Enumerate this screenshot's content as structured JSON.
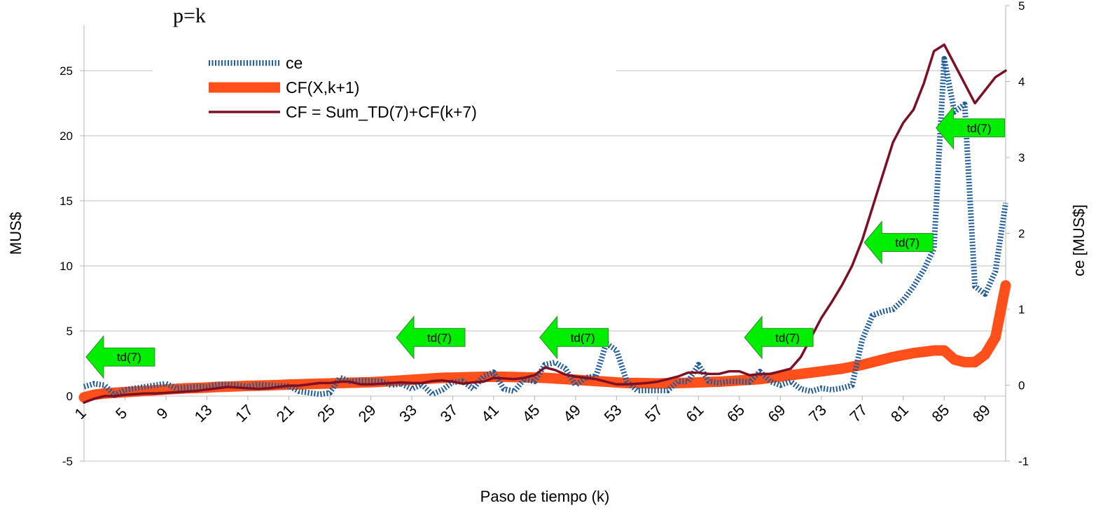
{
  "chart_data": {
    "type": "line",
    "annotation_title": "p=k",
    "xlabel": "Paso de tiempo (k)",
    "ylabel": "MUS$",
    "y2label": "ce [MUS$]",
    "xlim": [
      1,
      91
    ],
    "ylim": [
      -5,
      30
    ],
    "y2lim": [
      -1,
      5
    ],
    "x_ticks": [
      1,
      5,
      9,
      13,
      17,
      21,
      25,
      29,
      33,
      37,
      41,
      45,
      49,
      53,
      57,
      61,
      65,
      69,
      73,
      77,
      81,
      85,
      89
    ],
    "y_ticks": [
      -5,
      0,
      5,
      10,
      15,
      20,
      25
    ],
    "y2_ticks": [
      -1,
      0,
      1,
      2,
      3,
      4,
      5
    ],
    "grid": "horizontal",
    "legend_position": "top-left",
    "colors": {
      "ce": "#1f5b99",
      "cf_x": "#ff4f1a",
      "cf_sum": "#7b1027",
      "arrow": "#00ee00",
      "grid": "#c0c0c0"
    },
    "series": [
      {
        "name": "ce",
        "axis": "right",
        "style": "dotted",
        "x": [
          1,
          2,
          3,
          4,
          5,
          6,
          7,
          8,
          9,
          10,
          11,
          12,
          13,
          14,
          15,
          16,
          17,
          18,
          19,
          20,
          21,
          22,
          23,
          24,
          25,
          26,
          27,
          28,
          29,
          30,
          31,
          32,
          33,
          34,
          35,
          36,
          37,
          38,
          39,
          40,
          41,
          42,
          43,
          44,
          45,
          46,
          47,
          48,
          49,
          50,
          51,
          52,
          53,
          54,
          55,
          56,
          57,
          58,
          59,
          60,
          61,
          62,
          63,
          64,
          65,
          66,
          67,
          68,
          69,
          70,
          71,
          72,
          73,
          74,
          75,
          76,
          77,
          78,
          79,
          80,
          81,
          82,
          83,
          84,
          85,
          86,
          87,
          88,
          89,
          90,
          91
        ],
        "values": [
          -0.02,
          0.02,
          0.0,
          -0.13,
          -0.06,
          -0.04,
          -0.02,
          0.0,
          0.02,
          -0.04,
          -0.03,
          -0.02,
          -0.02,
          0.01,
          0.01,
          0.0,
          -0.02,
          0.01,
          0.0,
          -0.01,
          -0.01,
          -0.08,
          -0.1,
          -0.12,
          -0.1,
          0.1,
          0.05,
          0.06,
          0.06,
          0.05,
          0.0,
          0.02,
          -0.05,
          0.01,
          -0.12,
          -0.06,
          0.04,
          0.05,
          -0.05,
          0.12,
          0.17,
          -0.05,
          -0.08,
          0.08,
          0.05,
          0.27,
          0.3,
          0.22,
          0.0,
          0.1,
          0.12,
          0.55,
          0.46,
          0.05,
          -0.07,
          -0.07,
          -0.07,
          -0.07,
          0.05,
          0.05,
          0.27,
          0.05,
          0.03,
          0.05,
          0.05,
          0.04,
          0.18,
          0.05,
          0.0,
          0.05,
          -0.05,
          -0.08,
          -0.04,
          -0.06,
          -0.04,
          0.0,
          0.6,
          0.92,
          0.97,
          1.0,
          1.12,
          1.3,
          1.52,
          1.8,
          4.3,
          3.6,
          3.7,
          1.3,
          1.2,
          1.5,
          2.4
        ]
      },
      {
        "name": "CF(X,k+1)",
        "axis": "left",
        "style": "thick",
        "x": [
          1,
          2,
          3,
          4,
          5,
          6,
          7,
          8,
          9,
          10,
          11,
          12,
          13,
          14,
          15,
          16,
          17,
          18,
          19,
          20,
          21,
          22,
          23,
          24,
          25,
          26,
          27,
          28,
          29,
          30,
          31,
          32,
          33,
          34,
          35,
          36,
          37,
          38,
          39,
          40,
          41,
          42,
          43,
          44,
          45,
          46,
          47,
          48,
          49,
          50,
          51,
          52,
          53,
          54,
          55,
          56,
          57,
          58,
          59,
          60,
          61,
          62,
          63,
          64,
          65,
          66,
          67,
          68,
          69,
          70,
          71,
          72,
          73,
          74,
          75,
          76,
          77,
          78,
          79,
          80,
          81,
          82,
          83,
          84,
          85,
          86,
          87,
          88,
          89,
          90,
          91
        ],
        "values": [
          -0.1,
          0.1,
          0.2,
          0.25,
          0.3,
          0.35,
          0.4,
          0.45,
          0.5,
          0.55,
          0.6,
          0.62,
          0.65,
          0.7,
          0.72,
          0.75,
          0.78,
          0.8,
          0.82,
          0.85,
          0.88,
          0.9,
          0.93,
          0.95,
          0.97,
          1.0,
          1.02,
          1.04,
          1.06,
          1.1,
          1.15,
          1.2,
          1.25,
          1.3,
          1.35,
          1.4,
          1.42,
          1.44,
          1.46,
          1.48,
          1.48,
          1.48,
          1.46,
          1.44,
          1.42,
          1.4,
          1.35,
          1.3,
          1.25,
          1.2,
          1.15,
          1.1,
          1.05,
          1.0,
          1.0,
          0.98,
          0.97,
          0.98,
          1.0,
          1.02,
          1.05,
          1.08,
          1.1,
          1.15,
          1.2,
          1.25,
          1.3,
          1.4,
          1.5,
          1.6,
          1.7,
          1.8,
          1.9,
          2.0,
          2.1,
          2.25,
          2.4,
          2.6,
          2.8,
          3.0,
          3.15,
          3.3,
          3.4,
          3.5,
          3.5,
          2.8,
          2.6,
          2.6,
          3.2,
          4.5,
          8.5
        ]
      },
      {
        "name": "CF = Sum_TD(7)+CF(k+7)",
        "axis": "left",
        "style": "solid",
        "x": [
          1,
          2,
          3,
          4,
          5,
          6,
          7,
          8,
          9,
          10,
          11,
          12,
          13,
          14,
          15,
          16,
          17,
          18,
          19,
          20,
          21,
          22,
          23,
          24,
          25,
          26,
          27,
          28,
          29,
          30,
          31,
          32,
          33,
          34,
          35,
          36,
          37,
          38,
          39,
          40,
          41,
          42,
          43,
          44,
          45,
          46,
          47,
          48,
          49,
          50,
          51,
          52,
          53,
          54,
          55,
          56,
          57,
          58,
          59,
          60,
          61,
          62,
          63,
          64,
          65,
          66,
          67,
          68,
          69,
          70,
          71,
          72,
          73,
          74,
          75,
          76,
          77,
          78,
          79,
          80,
          81,
          82,
          83,
          84,
          85,
          86,
          87,
          88,
          89,
          90,
          91
        ],
        "values": [
          -0.5,
          -0.2,
          0.0,
          0.0,
          0.1,
          0.15,
          0.2,
          0.2,
          0.25,
          0.3,
          0.35,
          0.4,
          0.5,
          0.6,
          0.7,
          0.65,
          0.6,
          0.55,
          0.6,
          0.7,
          0.8,
          0.8,
          0.9,
          1.0,
          1.0,
          1.1,
          1.1,
          0.9,
          0.9,
          0.95,
          1.0,
          1.05,
          1.0,
          1.0,
          1.15,
          1.2,
          1.1,
          0.95,
          1.05,
          1.1,
          1.4,
          1.35,
          1.3,
          1.4,
          1.6,
          2.2,
          2.0,
          1.65,
          1.5,
          1.4,
          1.3,
          1.1,
          0.9,
          0.9,
          0.95,
          1.0,
          1.1,
          1.3,
          1.5,
          1.8,
          1.8,
          1.7,
          1.7,
          1.9,
          1.9,
          1.6,
          1.7,
          1.7,
          1.9,
          2.1,
          3.0,
          4.5,
          6.0,
          7.2,
          8.5,
          10.0,
          12.0,
          14.5,
          17.0,
          19.5,
          21.0,
          22.0,
          24.0,
          26.5,
          27.0,
          25.5,
          24.0,
          22.5,
          23.5,
          24.5,
          25.0
        ]
      }
    ],
    "annotations": [
      {
        "label": "td(7)",
        "x": 1.2,
        "y": 3.0
      },
      {
        "label": "td(7)",
        "x": 31.5,
        "y": 4.5
      },
      {
        "label": "td(7)",
        "x": 45.5,
        "y": 4.5
      },
      {
        "label": "td(7)",
        "x": 65.5,
        "y": 4.5
      },
      {
        "label": "td(7)",
        "x": 77.2,
        "y": 11.8
      },
      {
        "label": "td(7)",
        "x": 84.2,
        "y": 20.6
      }
    ]
  }
}
